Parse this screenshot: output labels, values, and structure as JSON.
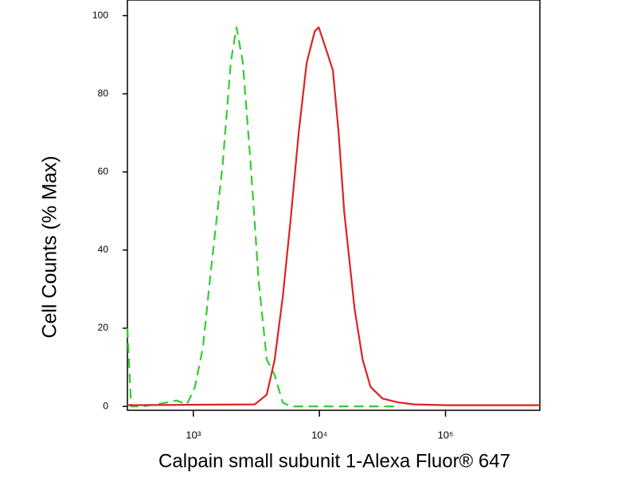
{
  "chart_data": {
    "type": "line",
    "title": null,
    "x_label": "Calpain small subunit 1-Alexa Fluor® 647",
    "y_label": "Cell Counts (% Max)",
    "xscale": "log",
    "xlim": [
      300,
      560000
    ],
    "ylim": [
      -1,
      104
    ],
    "xticks": [
      {
        "value": 1000,
        "label": "10³"
      },
      {
        "value": 10000,
        "label": "10⁴"
      },
      {
        "value": 100000,
        "label": "10⁵"
      }
    ],
    "yticks": [
      0,
      20,
      40,
      60,
      80,
      100
    ],
    "series": [
      {
        "color": "#33cc33",
        "dash": true,
        "x": [
          300,
          321,
          399,
          618,
          736,
          890,
          1030,
          1190,
          1380,
          1710,
          1980,
          2200,
          2470,
          2850,
          3300,
          3820,
          4420,
          5120,
          5920,
          42400
        ],
        "values": [
          20,
          0,
          0,
          1,
          1.5,
          0.5,
          5,
          15,
          35,
          62,
          88,
          97,
          88,
          62,
          32,
          12,
          8,
          1,
          0,
          0
        ]
      },
      {
        "color": "#dd2222",
        "dash": false,
        "x": [
          300,
          3070,
          3820,
          4420,
          5120,
          5920,
          6850,
          7930,
          9180,
          9870,
          11400,
          12800,
          14200,
          15700,
          19000,
          22000,
          25400,
          31700,
          42400,
          56600,
          101000,
          560000
        ],
        "values": [
          0.3,
          0.5,
          3,
          12,
          28,
          48,
          70,
          88,
          96,
          97,
          91,
          86,
          70,
          50,
          25,
          12,
          5,
          2,
          1,
          0.5,
          0.3,
          0.3
        ]
      }
    ]
  }
}
